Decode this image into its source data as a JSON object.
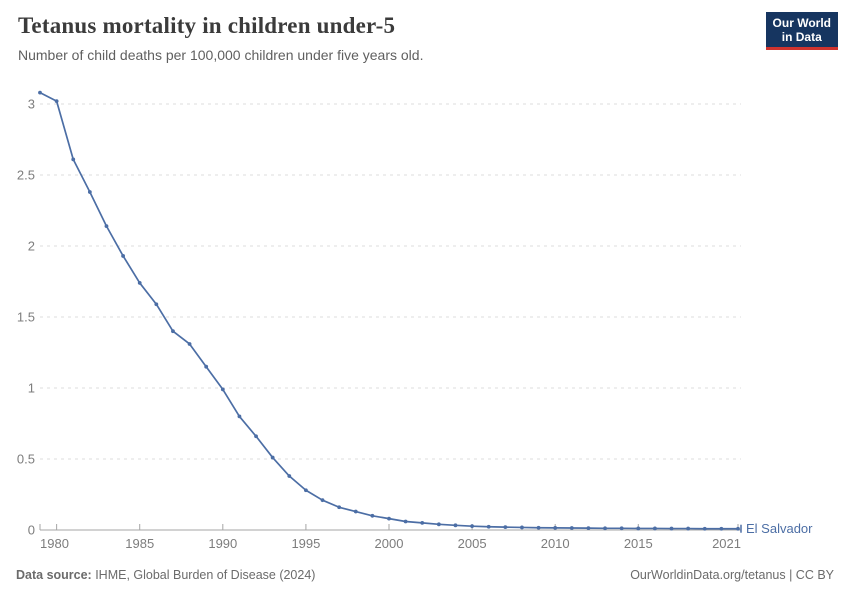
{
  "header": {
    "title": "Tetanus mortality in children under-5",
    "subtitle": "Number of child deaths per 100,000 children under five years old."
  },
  "logo": {
    "line1": "Our World",
    "line2": "in Data"
  },
  "chart_data": {
    "type": "line",
    "title": "Tetanus mortality in children under-5",
    "subtitle": "Number of child deaths per 100,000 children under five years old.",
    "entity": "El Salvador",
    "x": [
      1979,
      1980,
      1981,
      1982,
      1983,
      1984,
      1985,
      1986,
      1987,
      1988,
      1989,
      1990,
      1991,
      1992,
      1993,
      1994,
      1995,
      1996,
      1997,
      1998,
      1999,
      2000,
      2001,
      2002,
      2003,
      2004,
      2005,
      2006,
      2007,
      2008,
      2009,
      2010,
      2011,
      2012,
      2013,
      2014,
      2015,
      2016,
      2017,
      2018,
      2019,
      2020,
      2021
    ],
    "series": [
      {
        "name": "El Salvador",
        "color": "#4c6ea5",
        "values": [
          3.08,
          3.02,
          2.61,
          2.38,
          2.14,
          1.93,
          1.74,
          1.59,
          1.4,
          1.31,
          1.15,
          0.99,
          0.8,
          0.66,
          0.51,
          0.38,
          0.28,
          0.21,
          0.16,
          0.13,
          0.1,
          0.08,
          0.06,
          0.05,
          0.04,
          0.033,
          0.027,
          0.023,
          0.02,
          0.018,
          0.016,
          0.015,
          0.014,
          0.013,
          0.012,
          0.012,
          0.011,
          0.011,
          0.01,
          0.01,
          0.009,
          0.009,
          0.009
        ]
      }
    ],
    "xticks": [
      1980,
      1985,
      1990,
      1995,
      2000,
      2005,
      2010,
      2015,
      2021
    ],
    "yticks": [
      0,
      0.5,
      1,
      1.5,
      2,
      2.5,
      3
    ],
    "xlim": [
      1979,
      2021
    ],
    "ylim": [
      0,
      3.1
    ],
    "grid": "dashed-horizontal",
    "legend_position": "line-end"
  },
  "footer": {
    "source_bold": "Data source:",
    "source_rest": " IHME, Global Burden of Disease (2024)",
    "credit": "OurWorldinData.org/tetanus | CC BY"
  },
  "colors": {
    "line": "#4c6ea5",
    "entity_label": "#4c6ea5",
    "grid": "#dddddd",
    "axis": "#a5a5a5",
    "tick_label": "#7d7d7d",
    "title": "#3b3b3b",
    "subtitle": "#5f5f5f",
    "footer": "#6b6b6b",
    "logo_bg": "#163560",
    "logo_red": "#d0332e"
  }
}
